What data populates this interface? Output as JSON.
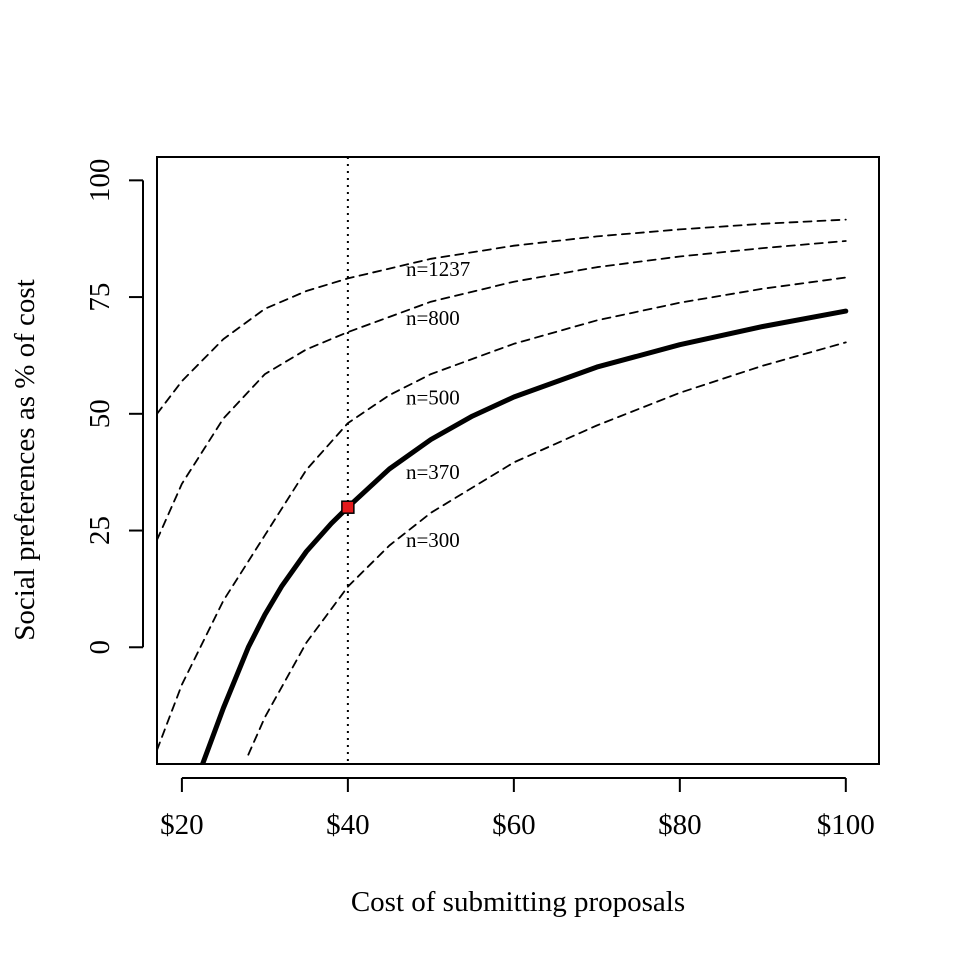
{
  "chart_data": {
    "type": "line",
    "title": "",
    "xlabel": "Cost of submitting proposals",
    "ylabel": "Social preferences as % of cost",
    "xlim": [
      17,
      104
    ],
    "ylim": [
      -25,
      105
    ],
    "xticks": [
      {
        "value": 20,
        "label": "$20"
      },
      {
        "value": 40,
        "label": "$40"
      },
      {
        "value": 60,
        "label": "$60"
      },
      {
        "value": 80,
        "label": "$80"
      },
      {
        "value": 100,
        "label": "$100"
      }
    ],
    "yticks": [
      {
        "value": 0,
        "label": "0"
      },
      {
        "value": 25,
        "label": "25"
      },
      {
        "value": 50,
        "label": "50"
      },
      {
        "value": 75,
        "label": "75"
      },
      {
        "value": 100,
        "label": "100"
      }
    ],
    "grid": false,
    "vline": {
      "x": 40,
      "style": "dotted"
    },
    "highlight_point": {
      "x": 40,
      "y": 30,
      "color": "#e41a1c"
    },
    "series": [
      {
        "name": "n=1237",
        "style": "dashed",
        "label_at": [
          47,
          81
        ],
        "x": [
          17,
          20,
          25,
          30,
          35,
          40,
          50,
          60,
          70,
          80,
          90,
          100
        ],
        "y": [
          50,
          57,
          66,
          72.5,
          76.3,
          79,
          83.2,
          86,
          88,
          89.5,
          90.7,
          91.6
        ]
      },
      {
        "name": "n=800",
        "style": "dashed",
        "label_at": [
          47,
          70.5
        ],
        "x": [
          17,
          20,
          25,
          30,
          35,
          40,
          50,
          60,
          70,
          80,
          90,
          100
        ],
        "y": [
          23,
          35,
          49,
          58.5,
          63.8,
          67.5,
          74,
          78.3,
          81.4,
          83.7,
          85.5,
          87
        ]
      },
      {
        "name": "n=500",
        "style": "dashed",
        "label_at": [
          47,
          53.5
        ],
        "x": [
          17,
          20,
          25,
          30,
          35,
          40,
          45,
          50,
          60,
          70,
          80,
          90,
          100
        ],
        "y": [
          -22,
          -8,
          10,
          24,
          38,
          48,
          54,
          58.5,
          65,
          70,
          73.8,
          76.8,
          79.2
        ]
      },
      {
        "name": "n=370",
        "style": "solid",
        "label_at": [
          47,
          37.5
        ],
        "x": [
          22.5,
          25,
          28,
          30,
          32,
          35,
          38,
          40,
          45,
          50,
          55,
          60,
          70,
          80,
          90,
          100
        ],
        "y": [
          -25,
          -13,
          0,
          7,
          13,
          20.5,
          26.5,
          30,
          38.2,
          44.5,
          49.5,
          53.6,
          60,
          64.8,
          68.7,
          72
        ]
      },
      {
        "name": "n=300",
        "style": "dashed",
        "label_at": [
          47,
          23
        ],
        "x": [
          28,
          30,
          35,
          40,
          45,
          50,
          60,
          70,
          80,
          90,
          100
        ],
        "y": [
          -23,
          -15,
          1,
          13,
          21.8,
          28.8,
          39.6,
          47.5,
          54.5,
          60.3,
          65.3
        ]
      }
    ]
  }
}
